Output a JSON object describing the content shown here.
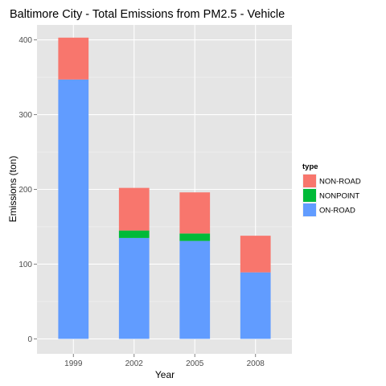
{
  "chart_data": {
    "type": "bar",
    "stacked": true,
    "title": "Baltimore City - Total Emissions from PM2.5 - Vehicle",
    "xlabel": "Year",
    "ylabel": "Emissions (ton)",
    "categories": [
      "1999",
      "2002",
      "2005",
      "2008"
    ],
    "ylim": [
      -20,
      420
    ],
    "yticks": [
      0,
      100,
      200,
      300,
      400
    ],
    "grid": true,
    "legend": {
      "title": "type",
      "position": "right",
      "entries": [
        "NON-ROAD",
        "NONPOINT",
        "ON-ROAD"
      ]
    },
    "series": [
      {
        "name": "ON-ROAD",
        "color": "#619CFF",
        "values": [
          347,
          135,
          131,
          89
        ]
      },
      {
        "name": "NONPOINT",
        "color": "#00BA38",
        "values": [
          0,
          10,
          10,
          0
        ]
      },
      {
        "name": "NON-ROAD",
        "color": "#F8766D",
        "values": [
          56,
          57,
          55,
          49
        ]
      }
    ]
  }
}
